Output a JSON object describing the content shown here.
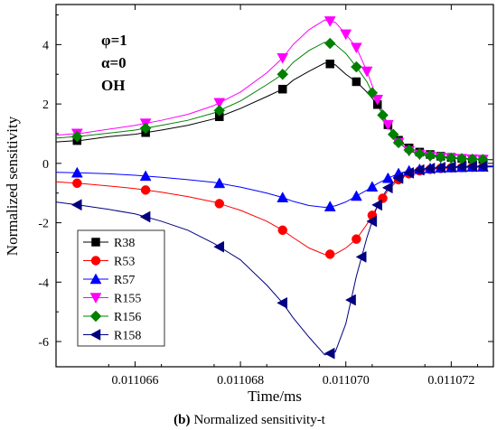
{
  "caption": {
    "prefix": "(b)",
    "text": "Normalized sensitivity-t"
  },
  "chart_data": {
    "type": "line",
    "xlabel": "Time/ms",
    "ylabel": "Normalized sensitivity",
    "xlim": [
      0.0110645,
      0.0110728
    ],
    "ylim": [
      -6.85,
      5.35
    ],
    "xticks": [
      0.011066,
      0.011068,
      0.01107,
      0.011072
    ],
    "xtick_labels": [
      "0.011066",
      "0.011068",
      "0.011070",
      "0.011072"
    ],
    "yticks": [
      -6,
      -4,
      -2,
      0,
      2,
      4
    ],
    "ytick_labels": [
      "-6",
      "-4",
      "-2",
      "0",
      "2",
      "4"
    ],
    "annotations": [
      "φ=1",
      "α=0",
      "OH"
    ],
    "legend_position": "bottom-left",
    "grid": false,
    "series": [
      {
        "name": "R38",
        "color": "#000000",
        "marker": "square",
        "points": [
          [
            0.0110645,
            0.72
          ],
          [
            0.011065,
            0.78
          ],
          [
            0.0110655,
            0.9
          ],
          [
            0.011066,
            0.98
          ],
          [
            0.0110665,
            1.12
          ],
          [
            0.011067,
            1.28
          ],
          [
            0.0110675,
            1.5
          ],
          [
            0.011068,
            1.85
          ],
          [
            0.0110685,
            2.25
          ],
          [
            0.0110688,
            2.5
          ],
          [
            0.011069,
            2.8
          ],
          [
            0.0110693,
            3.1
          ],
          [
            0.0110696,
            3.38
          ],
          [
            0.0110698,
            3.32
          ],
          [
            0.01107,
            3.0
          ],
          [
            0.0110702,
            2.75
          ],
          [
            0.0110704,
            2.4
          ],
          [
            0.0110706,
            1.98
          ],
          [
            0.0110708,
            1.3
          ],
          [
            0.011071,
            0.78
          ],
          [
            0.0110712,
            0.52
          ],
          [
            0.0110714,
            0.38
          ],
          [
            0.0110716,
            0.3
          ],
          [
            0.0110718,
            0.24
          ],
          [
            0.011072,
            0.2
          ],
          [
            0.0110722,
            0.17
          ],
          [
            0.0110724,
            0.15
          ],
          [
            0.0110728,
            0.13
          ]
        ],
        "marker_x": [
          0.0110649,
          0.0110662,
          0.0110676,
          0.0110688,
          0.0110697,
          0.0110702,
          0.0110706,
          0.0110708,
          0.011071,
          0.0110712,
          0.0110714,
          0.0110716,
          0.0110718,
          0.011072,
          0.0110722,
          0.0110724,
          0.0110726
        ]
      },
      {
        "name": "R53",
        "color": "#ff0000",
        "marker": "circle",
        "points": [
          [
            0.0110645,
            -0.62
          ],
          [
            0.011065,
            -0.68
          ],
          [
            0.0110655,
            -0.76
          ],
          [
            0.011066,
            -0.85
          ],
          [
            0.0110665,
            -0.97
          ],
          [
            0.011067,
            -1.12
          ],
          [
            0.0110675,
            -1.3
          ],
          [
            0.011068,
            -1.58
          ],
          [
            0.0110685,
            -1.95
          ],
          [
            0.0110688,
            -2.25
          ],
          [
            0.011069,
            -2.5
          ],
          [
            0.0110693,
            -2.85
          ],
          [
            0.0110696,
            -3.07
          ],
          [
            0.0110698,
            -3.05
          ],
          [
            0.01107,
            -2.85
          ],
          [
            0.0110702,
            -2.55
          ],
          [
            0.0110704,
            -2.05
          ],
          [
            0.0110706,
            -1.45
          ],
          [
            0.0110708,
            -0.9
          ],
          [
            0.011071,
            -0.55
          ],
          [
            0.0110712,
            -0.35
          ],
          [
            0.0110714,
            -0.25
          ],
          [
            0.0110716,
            -0.2
          ],
          [
            0.0110718,
            -0.17
          ],
          [
            0.011072,
            -0.15
          ],
          [
            0.0110722,
            -0.14
          ],
          [
            0.0110724,
            -0.13
          ],
          [
            0.0110728,
            -0.12
          ]
        ],
        "marker_x": [
          0.0110649,
          0.0110662,
          0.0110676,
          0.0110688,
          0.0110697,
          0.0110702,
          0.0110705,
          0.0110707,
          0.011071,
          0.0110712,
          0.0110714,
          0.0110716,
          0.0110718,
          0.011072,
          0.0110722,
          0.0110724,
          0.0110726
        ]
      },
      {
        "name": "R57",
        "color": "#0000ff",
        "marker": "triangle-up",
        "points": [
          [
            0.0110645,
            -0.3
          ],
          [
            0.011065,
            -0.32
          ],
          [
            0.0110655,
            -0.35
          ],
          [
            0.011066,
            -0.4
          ],
          [
            0.0110665,
            -0.47
          ],
          [
            0.011067,
            -0.55
          ],
          [
            0.0110675,
            -0.64
          ],
          [
            0.011068,
            -0.8
          ],
          [
            0.0110685,
            -1.0
          ],
          [
            0.0110688,
            -1.15
          ],
          [
            0.011069,
            -1.28
          ],
          [
            0.0110693,
            -1.42
          ],
          [
            0.0110696,
            -1.48
          ],
          [
            0.0110698,
            -1.43
          ],
          [
            0.01107,
            -1.3
          ],
          [
            0.0110702,
            -1.1
          ],
          [
            0.0110704,
            -0.9
          ],
          [
            0.0110706,
            -0.68
          ],
          [
            0.0110708,
            -0.5
          ],
          [
            0.011071,
            -0.34
          ],
          [
            0.0110712,
            -0.25
          ],
          [
            0.0110714,
            -0.2
          ],
          [
            0.0110716,
            -0.17
          ],
          [
            0.0110718,
            -0.15
          ],
          [
            0.011072,
            -0.14
          ],
          [
            0.0110722,
            -0.13
          ],
          [
            0.0110724,
            -0.12
          ],
          [
            0.0110728,
            -0.11
          ]
        ],
        "marker_x": [
          0.0110649,
          0.0110662,
          0.0110676,
          0.0110688,
          0.0110697,
          0.0110702,
          0.0110705,
          0.0110708,
          0.011071,
          0.0110712,
          0.0110714,
          0.0110716,
          0.0110718,
          0.011072,
          0.0110722,
          0.0110724,
          0.0110726
        ]
      },
      {
        "name": "R155",
        "color": "#ff00ff",
        "marker": "triangle-down",
        "points": [
          [
            0.0110645,
            0.95
          ],
          [
            0.011065,
            1.02
          ],
          [
            0.0110655,
            1.15
          ],
          [
            0.011066,
            1.28
          ],
          [
            0.0110665,
            1.45
          ],
          [
            0.011067,
            1.65
          ],
          [
            0.0110675,
            1.95
          ],
          [
            0.011068,
            2.4
          ],
          [
            0.0110685,
            3.05
          ],
          [
            0.0110688,
            3.55
          ],
          [
            0.011069,
            4.0
          ],
          [
            0.0110693,
            4.5
          ],
          [
            0.0110696,
            4.83
          ],
          [
            0.0110698,
            4.75
          ],
          [
            0.01107,
            4.35
          ],
          [
            0.0110702,
            3.9
          ],
          [
            0.0110704,
            3.1
          ],
          [
            0.0110706,
            2.15
          ],
          [
            0.0110708,
            1.3
          ],
          [
            0.011071,
            0.7
          ],
          [
            0.0110712,
            0.42
          ],
          [
            0.0110714,
            0.3
          ],
          [
            0.0110716,
            0.24
          ],
          [
            0.0110718,
            0.2
          ],
          [
            0.011072,
            0.17
          ],
          [
            0.0110722,
            0.15
          ],
          [
            0.0110724,
            0.14
          ],
          [
            0.0110728,
            0.12
          ]
        ],
        "marker_x": [
          0.0110649,
          0.0110662,
          0.0110676,
          0.0110688,
          0.0110697,
          0.01107,
          0.0110702,
          0.0110704,
          0.0110706,
          0.0110708,
          0.011071,
          0.0110712,
          0.0110714,
          0.0110716,
          0.0110718,
          0.011072,
          0.0110722,
          0.0110724,
          0.0110726
        ]
      },
      {
        "name": "R156",
        "color": "#008000",
        "marker": "diamond",
        "points": [
          [
            0.0110645,
            0.85
          ],
          [
            0.011065,
            0.92
          ],
          [
            0.0110655,
            1.02
          ],
          [
            0.011066,
            1.12
          ],
          [
            0.0110665,
            1.28
          ],
          [
            0.011067,
            1.45
          ],
          [
            0.0110675,
            1.7
          ],
          [
            0.011068,
            2.1
          ],
          [
            0.0110685,
            2.65
          ],
          [
            0.0110688,
            3.0
          ],
          [
            0.011069,
            3.4
          ],
          [
            0.0110693,
            3.8
          ],
          [
            0.0110696,
            4.08
          ],
          [
            0.0110698,
            4.0
          ],
          [
            0.01107,
            3.7
          ],
          [
            0.0110702,
            3.25
          ],
          [
            0.0110704,
            2.75
          ],
          [
            0.0110706,
            2.0
          ],
          [
            0.0110708,
            1.25
          ],
          [
            0.011071,
            0.7
          ],
          [
            0.0110712,
            0.45
          ],
          [
            0.0110714,
            0.32
          ],
          [
            0.0110716,
            0.26
          ],
          [
            0.0110718,
            0.21
          ],
          [
            0.011072,
            0.18
          ],
          [
            0.0110722,
            0.16
          ],
          [
            0.0110724,
            0.14
          ],
          [
            0.0110728,
            0.12
          ]
        ],
        "marker_x": [
          0.0110649,
          0.0110662,
          0.0110676,
          0.0110688,
          0.0110697,
          0.0110702,
          0.0110705,
          0.0110707,
          0.0110709,
          0.011071,
          0.0110712,
          0.0110714,
          0.0110716,
          0.0110718,
          0.011072,
          0.0110722,
          0.0110724,
          0.0110726
        ]
      },
      {
        "name": "R158",
        "color": "#000080",
        "marker": "triangle-left",
        "points": [
          [
            0.0110645,
            -1.3
          ],
          [
            0.011065,
            -1.42
          ],
          [
            0.0110655,
            -1.55
          ],
          [
            0.011066,
            -1.7
          ],
          [
            0.0110665,
            -1.95
          ],
          [
            0.011067,
            -2.25
          ],
          [
            0.0110675,
            -2.7
          ],
          [
            0.011068,
            -3.25
          ],
          [
            0.0110685,
            -4.1
          ],
          [
            0.0110688,
            -4.7
          ],
          [
            0.011069,
            -5.2
          ],
          [
            0.0110693,
            -5.85
          ],
          [
            0.0110696,
            -6.45
          ],
          [
            0.0110698,
            -6.35
          ],
          [
            0.01107,
            -5.4
          ],
          [
            0.0110702,
            -3.8
          ],
          [
            0.0110704,
            -2.5
          ],
          [
            0.0110706,
            -1.4
          ],
          [
            0.0110708,
            -0.82
          ],
          [
            0.011071,
            -0.5
          ],
          [
            0.0110712,
            -0.32
          ],
          [
            0.0110714,
            -0.22
          ],
          [
            0.0110716,
            -0.17
          ],
          [
            0.0110718,
            -0.14
          ],
          [
            0.011072,
            -0.12
          ],
          [
            0.0110722,
            -0.11
          ],
          [
            0.0110724,
            -0.1
          ],
          [
            0.0110728,
            -0.09
          ]
        ],
        "marker_x": [
          0.0110649,
          0.0110662,
          0.0110676,
          0.0110688,
          0.0110697,
          0.0110701,
          0.0110703,
          0.0110705,
          0.0110706,
          0.0110708,
          0.011071,
          0.0110712,
          0.0110714,
          0.0110716,
          0.0110718,
          0.011072,
          0.0110722,
          0.0110724,
          0.0110726
        ]
      }
    ]
  }
}
